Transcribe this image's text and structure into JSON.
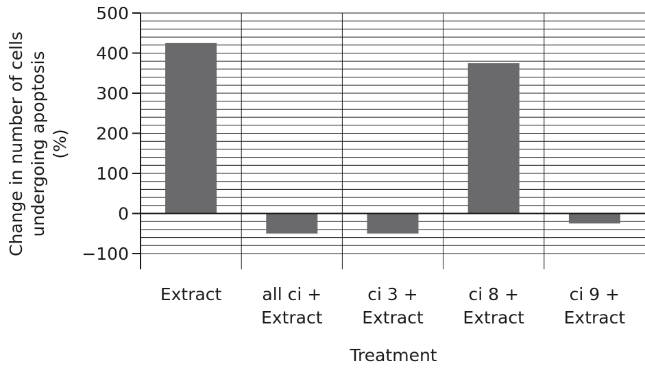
{
  "chart_data": {
    "type": "bar",
    "categories": [
      [
        "Extract"
      ],
      [
        "all ci +",
        "Extract"
      ],
      [
        "ci 3 +",
        "Extract"
      ],
      [
        "ci 8 +",
        "Extract"
      ],
      [
        "ci 9 +",
        "Extract"
      ]
    ],
    "values": [
      425,
      -50,
      -50,
      375,
      -25
    ],
    "xlabel": "Treatment",
    "ylabel": [
      "Change in number of cells",
      "undergoing apoptosis",
      "(%)"
    ],
    "ylim": [
      -100,
      500
    ],
    "yticks": [
      500,
      400,
      300,
      200,
      100,
      0,
      -100
    ],
    "ytick_labels": [
      "500",
      "400",
      "300",
      "200",
      "100",
      "0",
      "−100"
    ],
    "minor_grid_step": 20,
    "grid": true,
    "colors": {
      "bar": "#6a6a6c",
      "grid": "#1a1a1a",
      "text": "#1a1a1a"
    }
  }
}
